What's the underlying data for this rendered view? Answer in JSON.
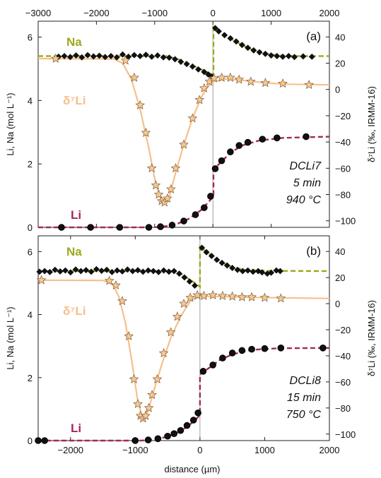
{
  "figure": {
    "x_axis_label": "distance (µm)",
    "colors": {
      "na": "#9ea81c",
      "li": "#a3285e",
      "d7li": "#f5c08a",
      "star_fill": "#f8c890",
      "star_stroke": "#7a5a3a",
      "frame": "#222222",
      "divider": "#888888"
    }
  },
  "chart_data": [
    {
      "type": "scatter",
      "panel_label": "(a)",
      "info_lines": [
        "DCLi7",
        "5 min",
        "940 °C"
      ],
      "xlim": [
        -3000,
        2000
      ],
      "xticks": [
        -3000,
        -2000,
        -1000,
        0,
        1000,
        2000
      ],
      "show_top_ticks": true,
      "show_bottom_ticks": false,
      "ylim_left": [
        0,
        6.5
      ],
      "yticks_left": [
        0,
        2,
        4,
        6
      ],
      "ylabel_left": "Li, Na (mol L⁻¹)",
      "ylim_right": [
        -105,
        52
      ],
      "yticks_right": [
        -100,
        -80,
        -60,
        -40,
        -20,
        0,
        20,
        40
      ],
      "ylabel_right": "δ⁷Li (‰, IRMM-16)",
      "interface_x": 0,
      "series_labels": {
        "na": "Na",
        "d7li": "δ⁷Li",
        "li": "Li"
      },
      "na_points": [
        [
          -2650,
          5.38
        ],
        [
          -2550,
          5.4
        ],
        [
          -2450,
          5.37
        ],
        [
          -2350,
          5.42
        ],
        [
          -2250,
          5.36
        ],
        [
          -2150,
          5.43
        ],
        [
          -2050,
          5.39
        ],
        [
          -1950,
          5.41
        ],
        [
          -1850,
          5.37
        ],
        [
          -1750,
          5.4
        ],
        [
          -1650,
          5.36
        ],
        [
          -1550,
          5.45
        ],
        [
          -1450,
          5.38
        ],
        [
          -1350,
          5.43
        ],
        [
          -1250,
          5.4
        ],
        [
          -1150,
          5.44
        ],
        [
          -1050,
          5.38
        ],
        [
          -950,
          5.42
        ],
        [
          -850,
          5.36
        ],
        [
          -750,
          5.35
        ],
        [
          -650,
          5.3
        ],
        [
          -550,
          5.22
        ],
        [
          -450,
          5.15
        ],
        [
          -350,
          5.07
        ],
        [
          -250,
          4.98
        ],
        [
          -150,
          4.9
        ],
        [
          -80,
          4.82
        ],
        [
          -20,
          4.76
        ],
        [
          40,
          6.28
        ],
        [
          100,
          6.18
        ],
        [
          200,
          6.06
        ],
        [
          300,
          5.96
        ],
        [
          400,
          5.86
        ],
        [
          500,
          5.75
        ],
        [
          600,
          5.66
        ],
        [
          700,
          5.58
        ],
        [
          800,
          5.52
        ],
        [
          900,
          5.47
        ],
        [
          1000,
          5.42
        ],
        [
          1100,
          5.4
        ],
        [
          1200,
          5.38
        ],
        [
          1300,
          5.4
        ],
        [
          1400,
          5.37
        ],
        [
          1550,
          5.39
        ],
        [
          1700,
          5.38
        ]
      ],
      "na_fit": [
        [
          -3000,
          5.4
        ],
        [
          -800,
          5.4
        ],
        [
          -600,
          5.3
        ],
        [
          -400,
          5.15
        ],
        [
          -200,
          4.98
        ],
        [
          -50,
          4.85
        ],
        [
          10,
          4.75
        ],
        [
          10,
          6.32
        ],
        [
          150,
          6.15
        ],
        [
          300,
          5.96
        ],
        [
          500,
          5.75
        ],
        [
          700,
          5.58
        ],
        [
          900,
          5.47
        ],
        [
          1200,
          5.41
        ],
        [
          1500,
          5.4
        ],
        [
          2000,
          5.4
        ]
      ],
      "li_points": [
        [
          -2600,
          0.0
        ],
        [
          -2100,
          0.0
        ],
        [
          -1600,
          0.0
        ],
        [
          -1100,
          0.0
        ],
        [
          -900,
          0.02
        ],
        [
          -700,
          0.07
        ],
        [
          -500,
          0.2
        ],
        [
          -300,
          0.4
        ],
        [
          -150,
          0.62
        ],
        [
          -40,
          0.98
        ],
        [
          40,
          1.85
        ],
        [
          150,
          2.1
        ],
        [
          300,
          2.38
        ],
        [
          450,
          2.58
        ],
        [
          600,
          2.68
        ],
        [
          850,
          2.78
        ],
        [
          1100,
          2.82
        ],
        [
          1600,
          2.86
        ]
      ],
      "li_fit": [
        [
          -3000,
          0.0
        ],
        [
          -1000,
          0.0
        ],
        [
          -800,
          0.04
        ],
        [
          -600,
          0.12
        ],
        [
          -400,
          0.28
        ],
        [
          -200,
          0.55
        ],
        [
          -50,
          0.85
        ],
        [
          10,
          1.0
        ],
        [
          10,
          1.82
        ],
        [
          150,
          2.08
        ],
        [
          300,
          2.35
        ],
        [
          500,
          2.58
        ],
        [
          800,
          2.74
        ],
        [
          1200,
          2.82
        ],
        [
          2000,
          2.86
        ]
      ],
      "d7li_points": [
        [
          -2700,
          23.5
        ],
        [
          -1500,
          22.0
        ],
        [
          -1350,
          9.0
        ],
        [
          -1250,
          -12.0
        ],
        [
          -1150,
          -33.0
        ],
        [
          -1050,
          -60.0
        ],
        [
          -980,
          -73.0
        ],
        [
          -930,
          -80.0
        ],
        [
          -880,
          -85.0
        ],
        [
          -830,
          -86.0
        ],
        [
          -780,
          -83.0
        ],
        [
          -720,
          -76.0
        ],
        [
          -640,
          -60.0
        ],
        [
          -500,
          -42.0
        ],
        [
          -350,
          -22.0
        ],
        [
          -230,
          -8.0
        ],
        [
          -150,
          1.0
        ],
        [
          -60,
          6.0
        ],
        [
          20,
          8.5
        ],
        [
          150,
          9.0
        ],
        [
          300,
          9.0
        ],
        [
          450,
          7.5
        ],
        [
          650,
          6.0
        ],
        [
          900,
          5.0
        ],
        [
          1200,
          4.5
        ],
        [
          1650,
          3.5
        ]
      ],
      "d7li_fit": [
        [
          -3000,
          23.5
        ],
        [
          -1700,
          23.2
        ],
        [
          -1550,
          20.0
        ],
        [
          -1400,
          8.0
        ],
        [
          -1250,
          -15.0
        ],
        [
          -1100,
          -45.0
        ],
        [
          -980,
          -72.0
        ],
        [
          -880,
          -85.0
        ],
        [
          -820,
          -87.0
        ],
        [
          -750,
          -82.0
        ],
        [
          -650,
          -65.0
        ],
        [
          -500,
          -42.0
        ],
        [
          -350,
          -22.0
        ],
        [
          -200,
          -6.0
        ],
        [
          -100,
          1.5
        ],
        [
          0,
          6.0
        ],
        [
          200,
          8.0
        ],
        [
          500,
          7.0
        ],
        [
          900,
          5.0
        ],
        [
          1300,
          4.0
        ],
        [
          2000,
          3.5
        ]
      ]
    },
    {
      "type": "scatter",
      "panel_label": "(b)",
      "info_lines": [
        "DCLi8",
        "15 min",
        "750 °C"
      ],
      "xlim": [
        -2500,
        2000
      ],
      "xticks": [
        -2000,
        -1000,
        0,
        1000,
        2000
      ],
      "show_top_ticks": false,
      "show_bottom_ticks": true,
      "ylim_left": [
        0,
        6.5
      ],
      "yticks_left": [
        0,
        2,
        4,
        6
      ],
      "ylabel_left": "Li, Na (mol L⁻¹)",
      "ylim_right": [
        -105,
        52
      ],
      "yticks_right": [
        -100,
        -80,
        -60,
        -40,
        -20,
        0,
        20,
        40
      ],
      "ylabel_right": "δ⁷Li (‰, IRMM-16)",
      "interface_x": 0,
      "series_labels": {
        "na": "Na",
        "d7li": "δ⁷Li",
        "li": "Li"
      },
      "na_points": [
        [
          -2480,
          5.36
        ],
        [
          -2400,
          5.38
        ],
        [
          -2320,
          5.35
        ],
        [
          -2240,
          5.42
        ],
        [
          -2160,
          5.37
        ],
        [
          -2080,
          5.4
        ],
        [
          -2000,
          5.34
        ],
        [
          -1920,
          5.43
        ],
        [
          -1840,
          5.38
        ],
        [
          -1760,
          5.41
        ],
        [
          -1680,
          5.36
        ],
        [
          -1600,
          5.44
        ],
        [
          -1520,
          5.39
        ],
        [
          -1440,
          5.42
        ],
        [
          -1360,
          5.35
        ],
        [
          -1280,
          5.4
        ],
        [
          -1200,
          5.37
        ],
        [
          -1120,
          5.43
        ],
        [
          -1040,
          5.38
        ],
        [
          -960,
          5.41
        ],
        [
          -880,
          5.36
        ],
        [
          -800,
          5.4
        ],
        [
          -720,
          5.38
        ],
        [
          -640,
          5.35
        ],
        [
          -560,
          5.4
        ],
        [
          -480,
          5.36
        ],
        [
          -400,
          5.38
        ],
        [
          -320,
          5.3
        ],
        [
          -240,
          5.18
        ],
        [
          -160,
          5.05
        ],
        [
          -80,
          4.92
        ],
        [
          30,
          6.12
        ],
        [
          100,
          5.98
        ],
        [
          180,
          5.86
        ],
        [
          260,
          5.74
        ],
        [
          340,
          5.64
        ],
        [
          420,
          5.56
        ],
        [
          500,
          5.48
        ],
        [
          580,
          5.42
        ],
        [
          660,
          5.38
        ],
        [
          740,
          5.4
        ],
        [
          820,
          5.36
        ],
        [
          900,
          5.38
        ],
        [
          960,
          5.34
        ],
        [
          1040,
          5.3
        ],
        [
          1100,
          5.33
        ],
        [
          1180,
          5.4
        ],
        [
          1240,
          5.38
        ]
      ],
      "na_fit": [
        [
          -2500,
          5.38
        ],
        [
          -450,
          5.38
        ],
        [
          -300,
          5.3
        ],
        [
          -150,
          5.1
        ],
        [
          -40,
          4.95
        ],
        [
          0,
          4.88
        ],
        [
          0,
          6.15
        ],
        [
          150,
          5.92
        ],
        [
          300,
          5.7
        ],
        [
          500,
          5.5
        ],
        [
          700,
          5.42
        ],
        [
          1000,
          5.39
        ],
        [
          2000,
          5.38
        ]
      ],
      "li_points": [
        [
          -2500,
          0.0
        ],
        [
          -2400,
          0.0
        ],
        [
          -1000,
          0.0
        ],
        [
          -800,
          0.02
        ],
        [
          -650,
          0.06
        ],
        [
          -500,
          0.14
        ],
        [
          -400,
          0.22
        ],
        [
          -300,
          0.32
        ],
        [
          -200,
          0.48
        ],
        [
          -100,
          0.65
        ],
        [
          -30,
          0.88
        ],
        [
          50,
          2.2
        ],
        [
          200,
          2.4
        ],
        [
          350,
          2.62
        ],
        [
          500,
          2.78
        ],
        [
          650,
          2.86
        ],
        [
          800,
          2.9
        ],
        [
          1000,
          2.92
        ],
        [
          1250,
          2.94
        ],
        [
          1900,
          2.94
        ]
      ],
      "li_fit": [
        [
          -2500,
          0.0
        ],
        [
          -900,
          0.0
        ],
        [
          -700,
          0.04
        ],
        [
          -500,
          0.12
        ],
        [
          -300,
          0.3
        ],
        [
          -150,
          0.52
        ],
        [
          -50,
          0.7
        ],
        [
          0,
          0.82
        ],
        [
          0,
          2.1
        ],
        [
          150,
          2.32
        ],
        [
          300,
          2.55
        ],
        [
          500,
          2.74
        ],
        [
          800,
          2.88
        ],
        [
          1200,
          2.93
        ],
        [
          2000,
          2.94
        ]
      ],
      "d7li_points": [
        [
          -2450,
          18.0
        ],
        [
          -1400,
          17.5
        ],
        [
          -1300,
          14.0
        ],
        [
          -1200,
          2.0
        ],
        [
          -1100,
          -25.0
        ],
        [
          -1020,
          -58.0
        ],
        [
          -960,
          -77.0
        ],
        [
          -920,
          -86.0
        ],
        [
          -880,
          -88.0
        ],
        [
          -840,
          -86.0
        ],
        [
          -790,
          -80.0
        ],
        [
          -740,
          -70.0
        ],
        [
          -660,
          -58.0
        ],
        [
          -560,
          -38.0
        ],
        [
          -450,
          -22.0
        ],
        [
          -350,
          -10.0
        ],
        [
          -250,
          0.0
        ],
        [
          -150,
          4.5
        ],
        [
          -40,
          6.5
        ],
        [
          60,
          6.0
        ],
        [
          200,
          6.5
        ],
        [
          350,
          6.0
        ],
        [
          500,
          5.5
        ],
        [
          650,
          5.0
        ],
        [
          800,
          5.0
        ],
        [
          1000,
          4.5
        ],
        [
          1250,
          4.0
        ]
      ],
      "d7li_fit": [
        [
          -2500,
          18.0
        ],
        [
          -1500,
          17.8
        ],
        [
          -1350,
          15.0
        ],
        [
          -1250,
          5.0
        ],
        [
          -1150,
          -15.0
        ],
        [
          -1050,
          -45.0
        ],
        [
          -970,
          -72.0
        ],
        [
          -900,
          -86.0
        ],
        [
          -850,
          -88.0
        ],
        [
          -800,
          -82.0
        ],
        [
          -720,
          -68.0
        ],
        [
          -600,
          -48.0
        ],
        [
          -450,
          -26.0
        ],
        [
          -300,
          -10.0
        ],
        [
          -150,
          2.0
        ],
        [
          0,
          5.5
        ],
        [
          300,
          5.5
        ],
        [
          800,
          4.8
        ],
        [
          2000,
          4.0
        ]
      ]
    }
  ]
}
